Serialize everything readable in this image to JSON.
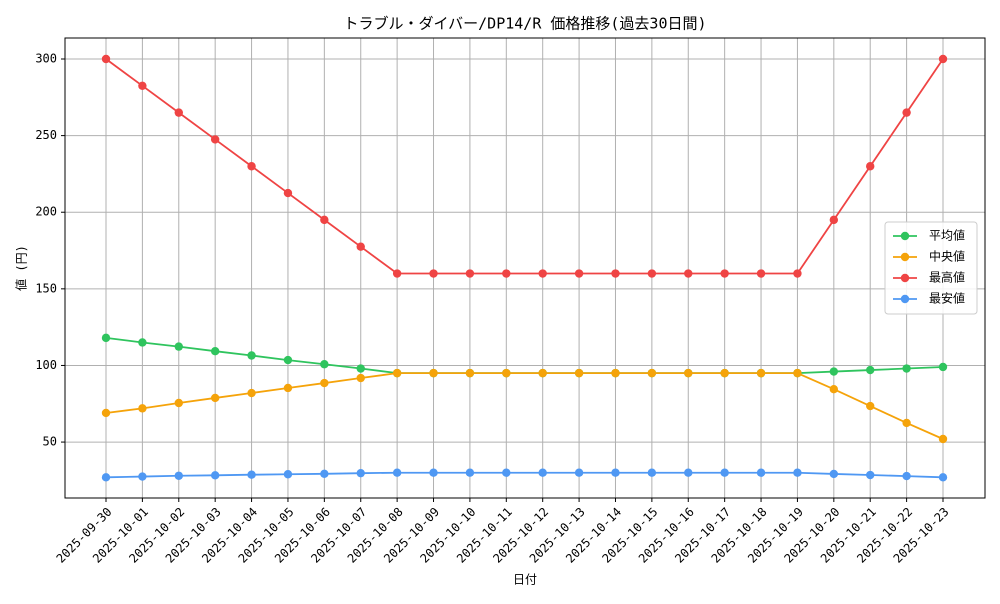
{
  "chart_data": {
    "type": "line",
    "title": "トラブル・ダイバー/DP14/R 価格推移(過去30日間)",
    "x_label": "日付",
    "y_label": "値 (円)",
    "categories": [
      "2025-09-30",
      "2025-10-01",
      "2025-10-02",
      "2025-10-03",
      "2025-10-04",
      "2025-10-05",
      "2025-10-06",
      "2025-10-07",
      "2025-10-08",
      "2025-10-09",
      "2025-10-10",
      "2025-10-11",
      "2025-10-12",
      "2025-10-13",
      "2025-10-14",
      "2025-10-15",
      "2025-10-16",
      "2025-10-17",
      "2025-10-18",
      "2025-10-19",
      "2025-10-20",
      "2025-10-21",
      "2025-10-22",
      "2025-10-23"
    ],
    "series": [
      {
        "name": "平均値",
        "color": "#2fc45e",
        "values": [
          118,
          115,
          112.3,
          109.3,
          106.5,
          103.5,
          100.8,
          98,
          95,
          95,
          95,
          95,
          95,
          95,
          95,
          95,
          95,
          95,
          95,
          95,
          96,
          97,
          98,
          99
        ]
      },
      {
        "name": "中央値",
        "color": "#f5a30a",
        "values": [
          69,
          72,
          75.5,
          78.8,
          82,
          85.3,
          88.5,
          91.8,
          95,
          95,
          95,
          95,
          95,
          95,
          95,
          95,
          95,
          95,
          95,
          95,
          84.5,
          73.5,
          62.5,
          52
        ]
      },
      {
        "name": "最高値",
        "color": "#ef4444",
        "values": [
          300,
          282.5,
          265,
          247.5,
          230,
          212.5,
          195,
          177.5,
          160,
          160,
          160,
          160,
          160,
          160,
          160,
          160,
          160,
          160,
          160,
          160,
          195,
          230,
          265,
          300
        ]
      },
      {
        "name": "最安値",
        "color": "#4f98f3",
        "values": [
          27,
          27.5,
          28,
          28.3,
          28.7,
          29,
          29.3,
          29.7,
          30,
          30,
          30,
          30,
          30,
          30,
          30,
          30,
          30,
          30,
          30,
          30,
          29.2,
          28.5,
          27.8,
          27
        ]
      }
    ],
    "ylim": [
      13.5,
      313.7
    ],
    "yticks": [
      50,
      100,
      150,
      200,
      250,
      300
    ],
    "grid": true,
    "legend": "center right"
  }
}
